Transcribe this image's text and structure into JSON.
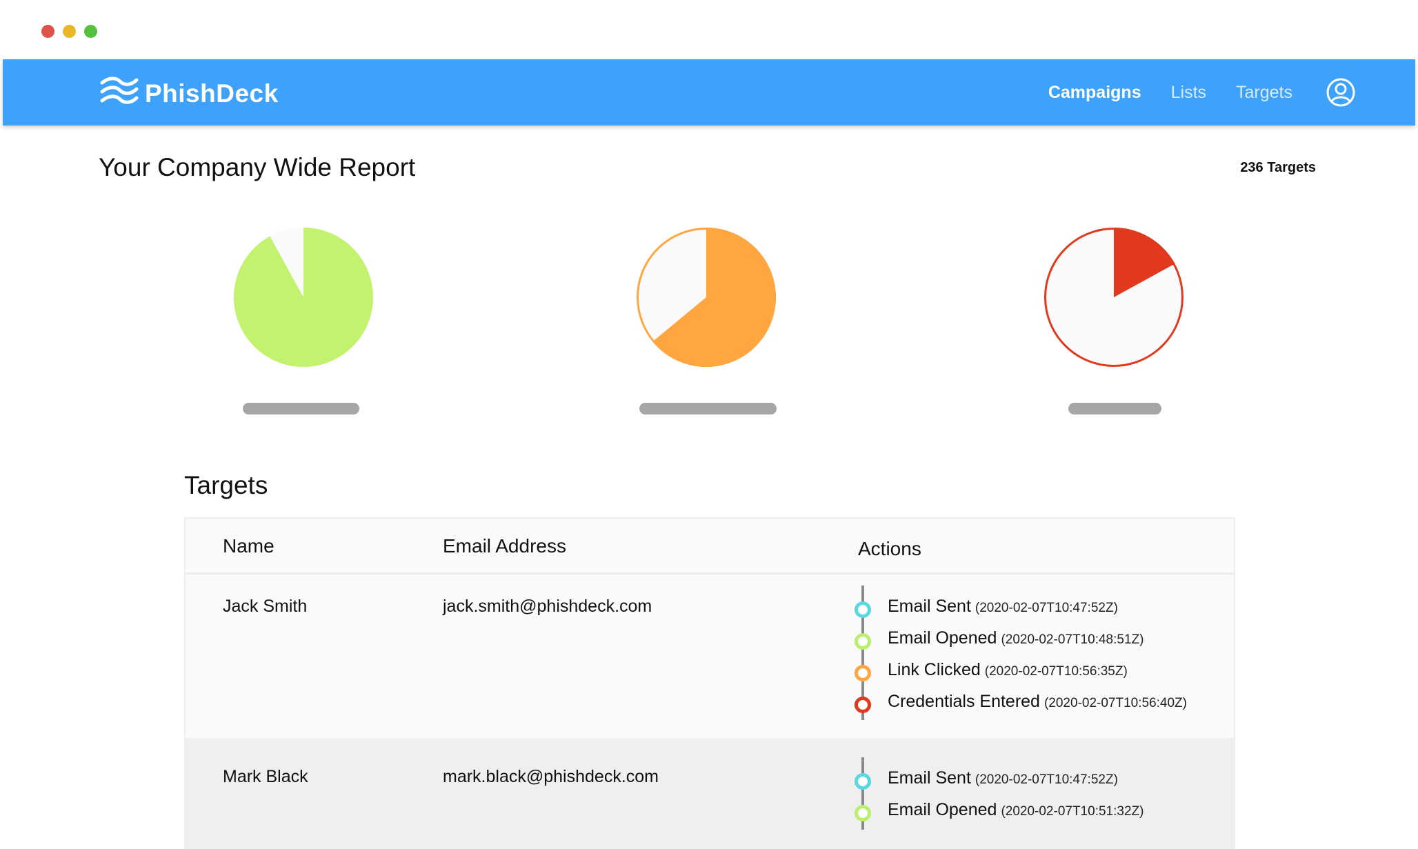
{
  "window_controls": [
    "close",
    "minimize",
    "maximize"
  ],
  "colors": {
    "nav_bg": "#3ea2fb",
    "dot_close": "#e0534a",
    "dot_minimize": "#e8b82a",
    "dot_maximize": "#55c03e",
    "email_sent": "#5ad8e0",
    "email_opened": "#b8ef6e",
    "link_clicked": "#ffa640",
    "credentials_entered": "#e2381e",
    "pie_empty": "#fafafa"
  },
  "nav": {
    "brand": "PhishDeck",
    "brand_icon": "waves-logo-icon",
    "links": [
      {
        "label": "Campaigns",
        "active": true
      },
      {
        "label": "Lists",
        "active": false
      },
      {
        "label": "Targets",
        "active": false
      }
    ],
    "user_icon": "user-circle-icon"
  },
  "report": {
    "title": "Your Company Wide Report",
    "targets_count": "236 Targets"
  },
  "pies": [
    {
      "name": "pie-email-opened",
      "fraction": 0.92,
      "color": "#c3f26f",
      "outlined": false
    },
    {
      "name": "pie-link-clicked",
      "fraction": 0.64,
      "color": "#ffa640",
      "outlined": true
    },
    {
      "name": "pie-credentials-entered",
      "fraction": 0.17,
      "color": "#e2381e",
      "outlined": true
    }
  ],
  "targets": {
    "title": "Targets",
    "columns": {
      "name": "Name",
      "email": "Email Address",
      "actions": "Actions"
    },
    "rows": [
      {
        "name": "Jack Smith",
        "email": "jack.smith@phishdeck.com",
        "actions": [
          {
            "label": "Email Sent",
            "time": "(2020-02-07T10:47:52Z)",
            "color": "#5ad8e0"
          },
          {
            "label": "Email Opened",
            "time": "(2020-02-07T10:48:51Z)",
            "color": "#b8ef6e"
          },
          {
            "label": "Link Clicked",
            "time": "(2020-02-07T10:56:35Z)",
            "color": "#ffa640"
          },
          {
            "label": "Credentials Entered",
            "time": "(2020-02-07T10:56:40Z)",
            "color": "#e2381e"
          }
        ]
      },
      {
        "name": "Mark Black",
        "email": "mark.black@phishdeck.com",
        "actions": [
          {
            "label": "Email Sent",
            "time": "(2020-02-07T10:47:52Z)",
            "color": "#5ad8e0"
          },
          {
            "label": "Email Opened",
            "time": "(2020-02-07T10:51:32Z)",
            "color": "#b8ef6e"
          }
        ]
      }
    ]
  }
}
